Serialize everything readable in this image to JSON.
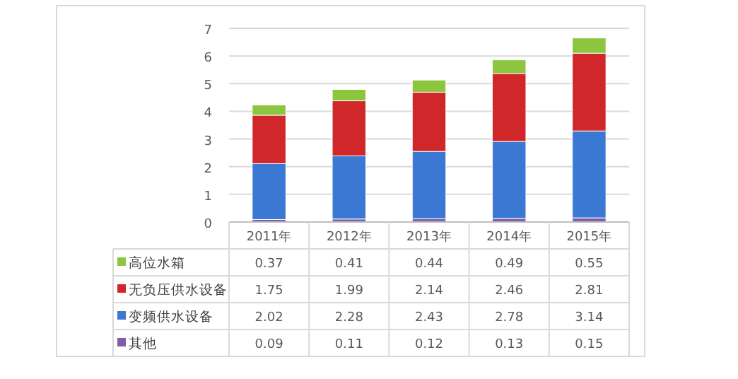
{
  "chart_data": {
    "type": "bar",
    "stacked": true,
    "categories": [
      "2011年",
      "2012年",
      "2013年",
      "2014年",
      "2015年"
    ],
    "series": [
      {
        "name": "其他",
        "color": "#7e5ea8",
        "values": [
          0.09,
          0.11,
          0.12,
          0.13,
          0.15
        ]
      },
      {
        "name": "变频供水设备",
        "color": "#3a78d4",
        "values": [
          2.02,
          2.28,
          2.43,
          2.78,
          3.14
        ]
      },
      {
        "name": "无负压供水设备",
        "color": "#d0282a",
        "values": [
          1.75,
          1.99,
          2.14,
          2.46,
          2.81
        ]
      },
      {
        "name": "高位水箱",
        "color": "#8cc63e",
        "values": [
          0.37,
          0.41,
          0.44,
          0.49,
          0.55
        ]
      }
    ],
    "ylim": [
      0,
      7
    ],
    "yticks": [
      0,
      1,
      2,
      3,
      4,
      5,
      6,
      7
    ],
    "grid": "y",
    "legend": "bottom",
    "data_labels": true
  }
}
